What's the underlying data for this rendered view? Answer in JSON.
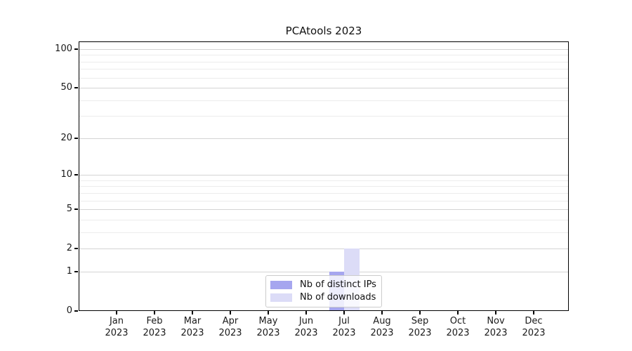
{
  "window": {
    "background": "#ffffff"
  },
  "chart_data": {
    "type": "bar",
    "title": "PCAtools 2023",
    "categories": [
      "Jan 2023",
      "Feb 2023",
      "Mar 2023",
      "Apr 2023",
      "May 2023",
      "Jun 2023",
      "Jul 2023",
      "Aug 2023",
      "Sep 2023",
      "Oct 2023",
      "Nov 2023",
      "Dec 2023"
    ],
    "x_tick_months": [
      "Jan",
      "Feb",
      "Mar",
      "Apr",
      "May",
      "Jun",
      "Jul",
      "Aug",
      "Sep",
      "Oct",
      "Nov",
      "Dec"
    ],
    "x_tick_year": "2023",
    "series": [
      {
        "name": "Nb of distinct IPs",
        "color": "#a6a6ef",
        "values": [
          0,
          0,
          0,
          0,
          0,
          0,
          1,
          0,
          0,
          0,
          0,
          0
        ]
      },
      {
        "name": "Nb of downloads",
        "color": "#dcdcf7",
        "values": [
          0,
          0,
          0,
          0,
          0,
          0,
          2,
          0,
          0,
          0,
          0,
          0
        ]
      }
    ],
    "yscale": "log1p",
    "ylim": [
      0,
      115
    ],
    "y_major_ticks": [
      0,
      1,
      2,
      5,
      10,
      20,
      50,
      100
    ],
    "y_minor_ticks": [
      3,
      4,
      6,
      7,
      8,
      9,
      30,
      40,
      60,
      70,
      80,
      90
    ],
    "grid": true,
    "legend": {
      "position": "lower-center-inside",
      "labels": [
        "Nb of distinct IPs",
        "Nb of downloads"
      ]
    }
  },
  "colors": {
    "spine": "#000000",
    "grid_major": "#d4d4d4",
    "grid_minor": "#ececec",
    "text": "#1a1a1a",
    "legend_border": "#cccccc",
    "legend_bg": "rgba(255,255,255,0.8)"
  }
}
